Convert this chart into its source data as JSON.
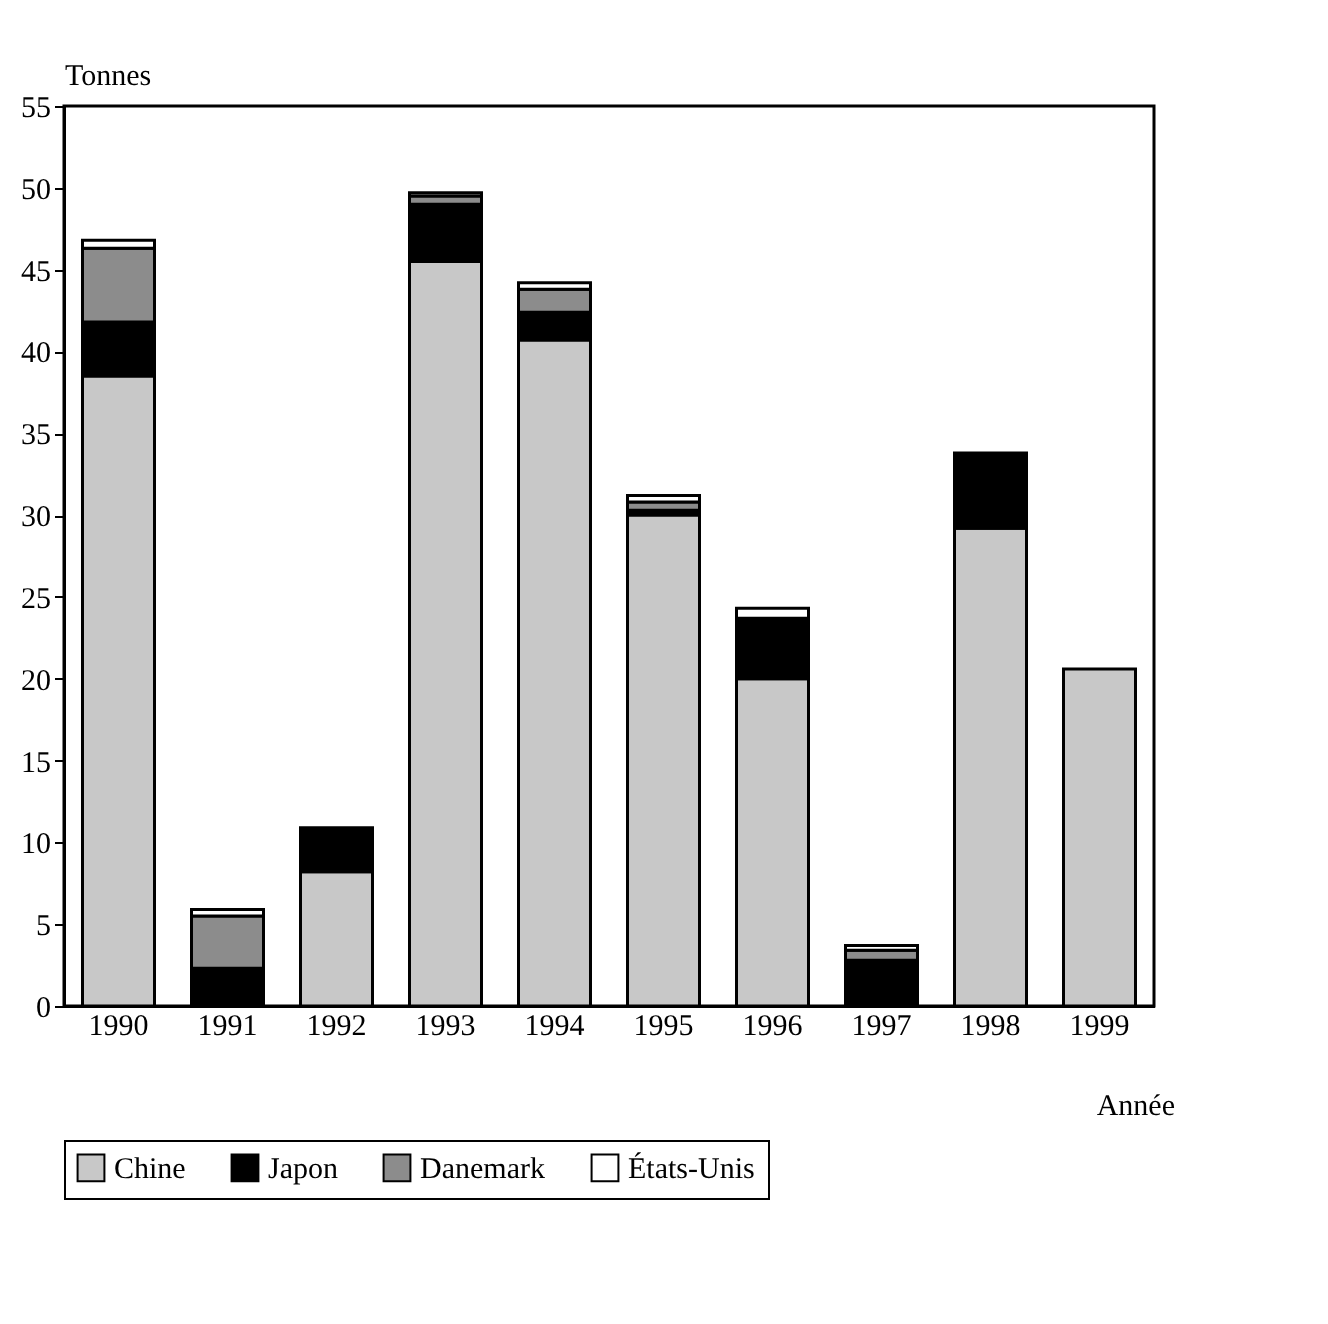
{
  "chart_data": {
    "type": "bar",
    "stacked": true,
    "xlabel": "Année",
    "ylabel": "Tonnes",
    "categories": [
      "1990",
      "1991",
      "1992",
      "1993",
      "1994",
      "1995",
      "1996",
      "1997",
      "1998",
      "1999"
    ],
    "series": [
      {
        "name": "Chine",
        "color": "#c8c8c8",
        "values": [
          38.5,
          0,
          8.2,
          45.5,
          40.7,
          30,
          20,
          0,
          29.2,
          20.6
        ]
      },
      {
        "name": "Japon",
        "color": "#000000",
        "values": [
          3.3,
          2.3,
          2.7,
          3.5,
          1.7,
          0.3,
          3.7,
          2.8,
          4.6,
          0
        ]
      },
      {
        "name": "Danemark",
        "color": "#8c8c8c",
        "values": [
          4.5,
          3.2,
          0,
          0.5,
          1.4,
          0.5,
          0,
          0.6,
          0,
          0
        ]
      },
      {
        "name": "États-Unis",
        "color": "#ffffff",
        "values": [
          0.5,
          0.4,
          0,
          0.2,
          0.4,
          0.4,
          0.6,
          0.3,
          0,
          0
        ]
      }
    ],
    "ylim": [
      0,
      55
    ],
    "yticks": [
      0,
      5,
      10,
      15,
      20,
      25,
      30,
      35,
      40,
      45,
      50,
      55
    ],
    "grid": false,
    "legend": "bottom"
  }
}
